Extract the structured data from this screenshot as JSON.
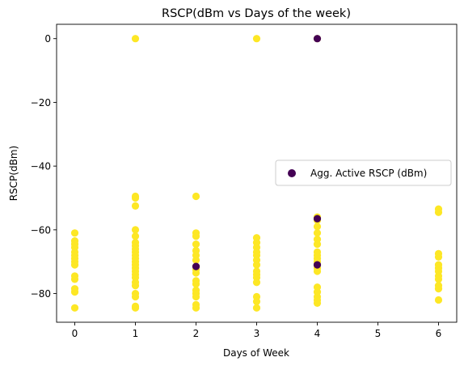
{
  "chart_data": {
    "type": "scatter",
    "title": "RSCP(dBm vs Days of the week)",
    "xlabel": "Days of Week",
    "ylabel": "RSCP(dBm)",
    "xlim": [
      -0.3,
      6.3
    ],
    "ylim": [
      -89,
      4.5
    ],
    "xticks": [
      0,
      1,
      2,
      3,
      4,
      5,
      6
    ],
    "yticks": [
      0,
      -20,
      -40,
      -60,
      -80
    ],
    "xtick_labels": [
      "0",
      "1",
      "2",
      "3",
      "4",
      "5",
      "6"
    ],
    "ytick_labels": [
      "0",
      "−20",
      "−40",
      "−60",
      "−80"
    ],
    "grid": false,
    "legend_position": "right",
    "colors": {
      "yellow": "#fde725",
      "purple": "#440154"
    },
    "series": [
      {
        "name": "Agg. Active RSCP (dBm)",
        "color_map": "viridis",
        "legend_color": "#440154",
        "points": [
          {
            "x": 0,
            "y": -61
          },
          {
            "x": 0,
            "y": -63.5
          },
          {
            "x": 0,
            "y": -64.5
          },
          {
            "x": 0,
            "y": -65.5
          },
          {
            "x": 0,
            "y": -67
          },
          {
            "x": 0,
            "y": -68
          },
          {
            "x": 0,
            "y": -69
          },
          {
            "x": 0,
            "y": -70
          },
          {
            "x": 0,
            "y": -71
          },
          {
            "x": 0,
            "y": -74.5
          },
          {
            "x": 0,
            "y": -75.5
          },
          {
            "x": 0,
            "y": -78.5
          },
          {
            "x": 0,
            "y": -79.5
          },
          {
            "x": 0,
            "y": -84.5
          },
          {
            "x": 1,
            "y": 0
          },
          {
            "x": 1,
            "y": -49.5
          },
          {
            "x": 1,
            "y": -50
          },
          {
            "x": 1,
            "y": -52.5
          },
          {
            "x": 1,
            "y": -60
          },
          {
            "x": 1,
            "y": -62
          },
          {
            "x": 1,
            "y": -64
          },
          {
            "x": 1,
            "y": -65
          },
          {
            "x": 1,
            "y": -66
          },
          {
            "x": 1,
            "y": -67
          },
          {
            "x": 1,
            "y": -68
          },
          {
            "x": 1,
            "y": -69
          },
          {
            "x": 1,
            "y": -70
          },
          {
            "x": 1,
            "y": -71
          },
          {
            "x": 1,
            "y": -72
          },
          {
            "x": 1,
            "y": -73
          },
          {
            "x": 1,
            "y": -74
          },
          {
            "x": 1,
            "y": -75
          },
          {
            "x": 1,
            "y": -76.5
          },
          {
            "x": 1,
            "y": -77.5
          },
          {
            "x": 1,
            "y": -80
          },
          {
            "x": 1,
            "y": -81
          },
          {
            "x": 1,
            "y": -84
          },
          {
            "x": 1,
            "y": -84.5
          },
          {
            "x": 2,
            "y": -49.5
          },
          {
            "x": 2,
            "y": -61
          },
          {
            "x": 2,
            "y": -62
          },
          {
            "x": 2,
            "y": -64.5
          },
          {
            "x": 2,
            "y": -66.5
          },
          {
            "x": 2,
            "y": -68
          },
          {
            "x": 2,
            "y": -69.5
          },
          {
            "x": 2,
            "y": -71.5
          },
          {
            "x": 2,
            "y": -72.5
          },
          {
            "x": 2,
            "y": -73.5
          },
          {
            "x": 2,
            "y": -76
          },
          {
            "x": 2,
            "y": -77
          },
          {
            "x": 2,
            "y": -79
          },
          {
            "x": 2,
            "y": -80
          },
          {
            "x": 2,
            "y": -81
          },
          {
            "x": 2,
            "y": -83.5
          },
          {
            "x": 2,
            "y": -84.5
          },
          {
            "x": 3,
            "y": 0
          },
          {
            "x": 3,
            "y": -62.5
          },
          {
            "x": 3,
            "y": -64
          },
          {
            "x": 3,
            "y": -65.5
          },
          {
            "x": 3,
            "y": -67
          },
          {
            "x": 3,
            "y": -68
          },
          {
            "x": 3,
            "y": -69.5
          },
          {
            "x": 3,
            "y": -71
          },
          {
            "x": 3,
            "y": -73
          },
          {
            "x": 3,
            "y": -74
          },
          {
            "x": 3,
            "y": -75
          },
          {
            "x": 3,
            "y": -76.5
          },
          {
            "x": 3,
            "y": -81
          },
          {
            "x": 3,
            "y": -82.5
          },
          {
            "x": 3,
            "y": -84.5
          },
          {
            "x": 4,
            "y": 0
          },
          {
            "x": 4,
            "y": -56
          },
          {
            "x": 4,
            "y": -57
          },
          {
            "x": 4,
            "y": -59
          },
          {
            "x": 4,
            "y": -61
          },
          {
            "x": 4,
            "y": -63
          },
          {
            "x": 4,
            "y": -64.5
          },
          {
            "x": 4,
            "y": -67
          },
          {
            "x": 4,
            "y": -68
          },
          {
            "x": 4,
            "y": -69
          },
          {
            "x": 4,
            "y": -70
          },
          {
            "x": 4,
            "y": -71
          },
          {
            "x": 4,
            "y": -72
          },
          {
            "x": 4,
            "y": -73
          },
          {
            "x": 4,
            "y": -78
          },
          {
            "x": 4,
            "y": -79.5
          },
          {
            "x": 4,
            "y": -81
          },
          {
            "x": 4,
            "y": -82
          },
          {
            "x": 4,
            "y": -83
          },
          {
            "x": 6,
            "y": -53.5
          },
          {
            "x": 6,
            "y": -54.5
          },
          {
            "x": 6,
            "y": -67.5
          },
          {
            "x": 6,
            "y": -68.5
          },
          {
            "x": 6,
            "y": -71
          },
          {
            "x": 6,
            "y": -72
          },
          {
            "x": 6,
            "y": -73
          },
          {
            "x": 6,
            "y": -74.5
          },
          {
            "x": 6,
            "y": -75.5
          },
          {
            "x": 6,
            "y": -77.5
          },
          {
            "x": 6,
            "y": -78.5
          },
          {
            "x": 6,
            "y": -82
          },
          {
            "x": 2,
            "y": -71.5,
            "color": "#440154"
          },
          {
            "x": 4,
            "y": -56.5,
            "color": "#440154"
          },
          {
            "x": 4,
            "y": -71,
            "color": "#440154"
          },
          {
            "x": 4,
            "y": 0,
            "color": "#440154"
          }
        ]
      }
    ]
  }
}
